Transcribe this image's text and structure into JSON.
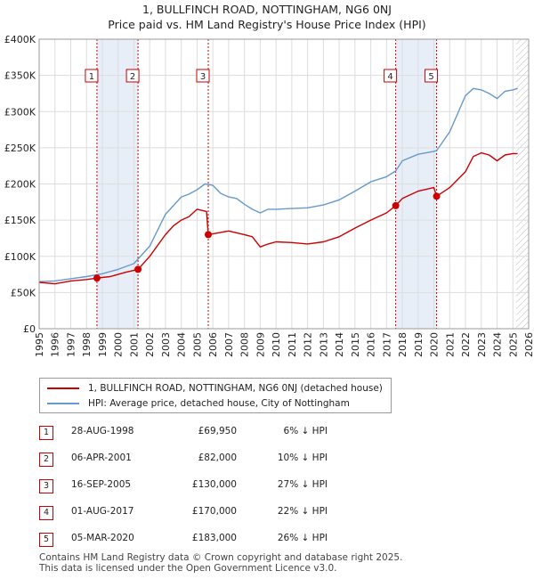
{
  "title_line1": "1, BULLFINCH ROAD, NOTTINGHAM, NG6 0NJ",
  "title_line2": "Price paid vs. HM Land Registry's House Price Index (HPI)",
  "colors": {
    "property": "#cc0000",
    "hpi": "#6699cc",
    "shade": "#e8eef8",
    "grid": "#dddddd"
  },
  "chart_data": {
    "type": "line",
    "title": "Price paid vs. HM Land Registry's House Price Index (HPI)",
    "xlabel": "",
    "ylabel": "",
    "xlim": [
      1995,
      2026
    ],
    "ylim": [
      0,
      400000
    ],
    "y_ticks": [
      0,
      50000,
      100000,
      150000,
      200000,
      250000,
      300000,
      350000,
      400000
    ],
    "y_tick_labels": [
      "£0",
      "£50K",
      "£100K",
      "£150K",
      "£200K",
      "£250K",
      "£300K",
      "£350K",
      "£400K"
    ],
    "x_ticks": [
      1995,
      1996,
      1997,
      1998,
      1999,
      2000,
      2001,
      2002,
      2003,
      2004,
      2005,
      2006,
      2007,
      2008,
      2009,
      2010,
      2011,
      2012,
      2013,
      2014,
      2015,
      2016,
      2017,
      2018,
      2019,
      2020,
      2021,
      2022,
      2023,
      2024,
      2025,
      2026
    ],
    "grid": true,
    "future_hatch_from": 2025.2,
    "series": [
      {
        "name": "1, BULLFINCH ROAD, NOTTINGHAM, NG6 0NJ (detached house)",
        "x": [
          1995,
          1996,
          1997,
          1998.0,
          1998.66,
          1999.5,
          2000.5,
          2001.26,
          2002,
          2003,
          2003.5,
          2004,
          2004.5,
          2005,
          2005.6,
          2005.71,
          2006.5,
          2007,
          2008,
          2008.5,
          2009,
          2009.5,
          2010,
          2011,
          2012,
          2013,
          2014,
          2015,
          2016,
          2017,
          2017.58,
          2018,
          2019,
          2020,
          2020.17,
          2021,
          2022,
          2022.5,
          2023,
          2023.5,
          2024,
          2024.5,
          2025,
          2025.3
        ],
        "y": [
          64000,
          62000,
          66000,
          68000,
          69950,
          72000,
          78000,
          82000,
          100000,
          130000,
          142000,
          150000,
          155000,
          165000,
          162000,
          130000,
          133000,
          135000,
          130000,
          127000,
          113000,
          117000,
          120000,
          119000,
          117000,
          120000,
          127000,
          139000,
          150000,
          160000,
          170000,
          180000,
          190000,
          195000,
          183000,
          195000,
          217000,
          238000,
          243000,
          240000,
          232000,
          240000,
          242000,
          242000
        ]
      },
      {
        "name": "HPI: Average price, detached house, City of Nottingham",
        "x": [
          1995,
          1996,
          1997,
          1998,
          1999,
          2000,
          2001,
          2002,
          2003,
          2004,
          2004.5,
          2005,
          2005.5,
          2006,
          2006.5,
          2007,
          2007.5,
          2008,
          2008.5,
          2009,
          2009.5,
          2010,
          2011,
          2012,
          2013,
          2014,
          2015,
          2016,
          2017,
          2017.58,
          2018,
          2019,
          2020,
          2020.17,
          2021,
          2022,
          2022.5,
          2023,
          2023.5,
          2024,
          2024.5,
          2025,
          2025.3
        ],
        "y": [
          65000,
          66000,
          69000,
          72000,
          76000,
          82000,
          90000,
          114000,
          158000,
          182000,
          186000,
          192000,
          200000,
          198000,
          187000,
          182000,
          180000,
          172000,
          165000,
          160000,
          165000,
          165000,
          166000,
          167000,
          171000,
          178000,
          190000,
          203000,
          210000,
          218000,
          232000,
          241000,
          245000,
          246000,
          272000,
          322000,
          332000,
          330000,
          325000,
          318000,
          328000,
          330000,
          332000
        ]
      }
    ],
    "sales": [
      {
        "label": "1",
        "x": 1998.66,
        "y": 69950
      },
      {
        "label": "2",
        "x": 2001.26,
        "y": 82000
      },
      {
        "label": "3",
        "x": 2005.71,
        "y": 130000
      },
      {
        "label": "4",
        "x": 2017.58,
        "y": 170000
      },
      {
        "label": "5",
        "x": 2020.17,
        "y": 183000
      }
    ],
    "shaded_ranges": [
      [
        1998.66,
        2001.26
      ],
      [
        2017.58,
        2020.17
      ]
    ]
  },
  "legend": {
    "property_label": "1, BULLFINCH ROAD, NOTTINGHAM, NG6 0NJ (detached house)",
    "hpi_label": "HPI: Average price, detached house, City of Nottingham"
  },
  "transactions": [
    {
      "num": "1",
      "date": "28-AUG-1998",
      "price": "£69,950",
      "hpi": "6% ↓ HPI"
    },
    {
      "num": "2",
      "date": "06-APR-2001",
      "price": "£82,000",
      "hpi": "10% ↓ HPI"
    },
    {
      "num": "3",
      "date": "16-SEP-2005",
      "price": "£130,000",
      "hpi": "27% ↓ HPI"
    },
    {
      "num": "4",
      "date": "01-AUG-2017",
      "price": "£170,000",
      "hpi": "22% ↓ HPI"
    },
    {
      "num": "5",
      "date": "05-MAR-2020",
      "price": "£183,000",
      "hpi": "26% ↓ HPI"
    }
  ],
  "footer_line1": "Contains HM Land Registry data © Crown copyright and database right 2025.",
  "footer_line2": "This data is licensed under the Open Government Licence v3.0."
}
